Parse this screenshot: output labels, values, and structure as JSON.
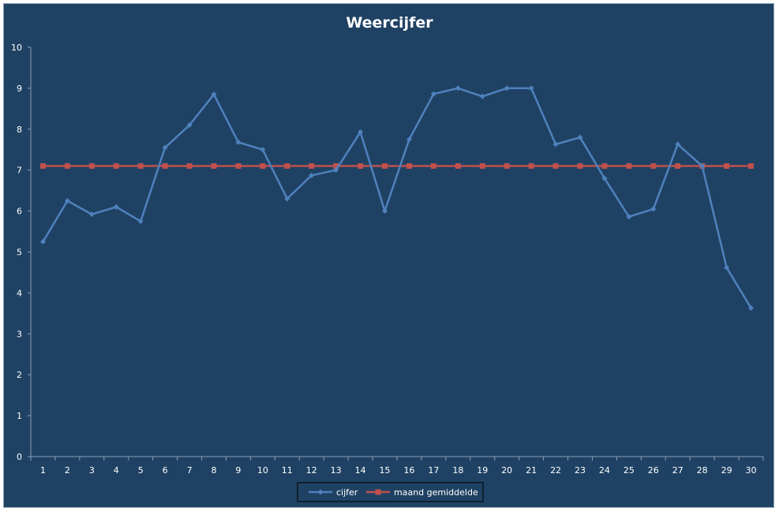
{
  "chart_data": {
    "type": "line",
    "title": "Weercijfer",
    "xlabel": "",
    "ylabel": "",
    "ylim": [
      0,
      10
    ],
    "yticks": [
      "0",
      "1",
      "2",
      "3",
      "4",
      "5",
      "6",
      "7",
      "8",
      "9",
      "10"
    ],
    "categories": [
      "1",
      "2",
      "3",
      "4",
      "5",
      "6",
      "7",
      "8",
      "9",
      "10",
      "11",
      "12",
      "13",
      "14",
      "15",
      "16",
      "17",
      "18",
      "19",
      "20",
      "21",
      "22",
      "23",
      "24",
      "25",
      "26",
      "27",
      "28",
      "29",
      "30"
    ],
    "grid": false,
    "legend_position": "bottom",
    "series": [
      {
        "name": "cijfer",
        "color": "#4f81bd",
        "marker": "diamond",
        "values": [
          5.25,
          6.25,
          5.92,
          6.1,
          5.75,
          7.55,
          8.1,
          8.85,
          7.68,
          7.5,
          6.3,
          6.87,
          7.0,
          7.93,
          6.0,
          7.75,
          8.86,
          9.0,
          8.8,
          9.0,
          9.0,
          7.63,
          7.8,
          6.8,
          5.86,
          6.05,
          7.63,
          7.1,
          4.62,
          3.63
        ]
      },
      {
        "name": "maand gemiddelde",
        "color": "#c0504d",
        "marker": "square",
        "values": [
          7.1,
          7.1,
          7.1,
          7.1,
          7.1,
          7.1,
          7.1,
          7.1,
          7.1,
          7.1,
          7.1,
          7.1,
          7.1,
          7.1,
          7.1,
          7.1,
          7.1,
          7.1,
          7.1,
          7.1,
          7.1,
          7.1,
          7.1,
          7.1,
          7.1,
          7.1,
          7.1,
          7.1,
          7.1,
          7.1
        ]
      }
    ]
  }
}
